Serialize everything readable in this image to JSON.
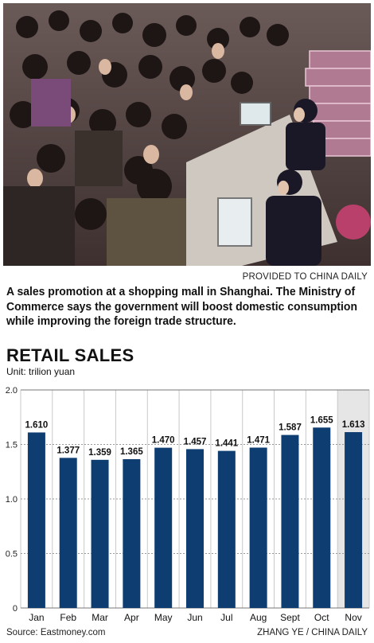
{
  "photo": {
    "credit": "PROVIDED TO CHINA DAILY",
    "caption": "A sales promotion at a shopping mall in Shanghai. The Ministry of Commerce says the government will boost domestic consumption while improving the foreign trade structure."
  },
  "chart_data": {
    "type": "bar",
    "title": "RETAIL SALES",
    "unit": "Unit: trilion yuan",
    "categories": [
      "Jan",
      "Feb",
      "Mar",
      "Apr",
      "May",
      "Jun",
      "Jul",
      "Aug",
      "Sept",
      "Oct",
      "Nov"
    ],
    "values": [
      1.61,
      1.377,
      1.359,
      1.365,
      1.47,
      1.457,
      1.441,
      1.471,
      1.587,
      1.655,
      1.613
    ],
    "value_labels": [
      "1.610",
      "1.377",
      "1.359",
      "1.365",
      "1.470",
      "1.457",
      "1.441",
      "1.471",
      "1.587",
      "1.655",
      "1.613"
    ],
    "yticks": [
      "0",
      "0.5",
      "1.0",
      "1.5",
      "2.0"
    ],
    "ylim": [
      0,
      2.0
    ],
    "grid": true,
    "highlight_category": "Nov",
    "bar_color": "#0e3d72",
    "highlight_bg": "#e6e6e6"
  },
  "footer": {
    "source": "Source: Eastmoney.com",
    "byline": "ZHANG YE / CHINA DAILY"
  }
}
